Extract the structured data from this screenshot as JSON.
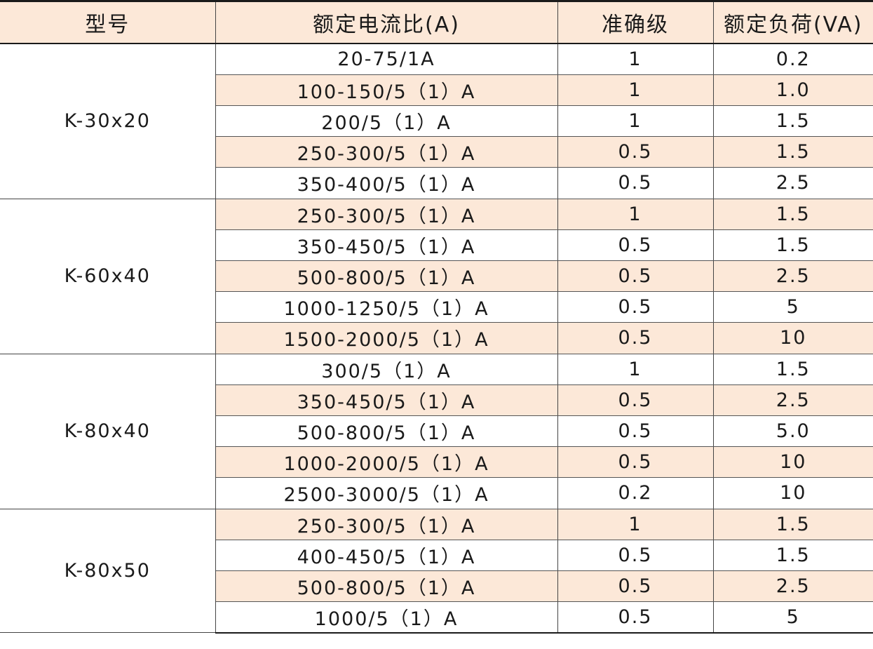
{
  "headers": [
    "型号",
    "额定电流比(A)",
    "准确级",
    "额定负荷(VA)"
  ],
  "groups": [
    {
      "model": "K-30x20",
      "rows": [
        [
          "20-75/1A",
          "1",
          "0.2"
        ],
        [
          "100-150/5（1）A",
          "1",
          "1.0"
        ],
        [
          "200/5（1）A",
          "1",
          "1.5"
        ],
        [
          "250-300/5（1）A",
          "0.5",
          "1.5"
        ],
        [
          "350-400/5（1）A",
          "0.5",
          "2.5"
        ]
      ]
    },
    {
      "model": "K-60x40",
      "rows": [
        [
          "250-300/5（1）A",
          "1",
          "1.5"
        ],
        [
          "350-450/5（1）A",
          "0.5",
          "1.5"
        ],
        [
          "500-800/5（1）A",
          "0.5",
          "2.5"
        ],
        [
          "1000-1250/5（1）A",
          "0.5",
          "5"
        ],
        [
          "1500-2000/5（1）A",
          "0.5",
          "10"
        ]
      ]
    },
    {
      "model": "K-80x40",
      "rows": [
        [
          "300/5（1）A",
          "1",
          "1.5"
        ],
        [
          "350-450/5（1）A",
          "0.5",
          "2.5"
        ],
        [
          "500-800/5（1）A",
          "0.5",
          "5.0"
        ],
        [
          "1000-2000/5（1）A",
          "0.5",
          "10"
        ],
        [
          "2500-3000/5（1）A",
          "0.2",
          "10"
        ]
      ]
    },
    {
      "model": "K-80x50",
      "rows": [
        [
          "250-300/5（1）A",
          "1",
          "1.5"
        ],
        [
          "400-450/5（1）A",
          "0.5",
          "1.5"
        ],
        [
          "500-800/5（1）A",
          "0.5",
          "2.5"
        ],
        [
          "1000/5（1）A",
          "0.5",
          "5"
        ]
      ]
    }
  ],
  "shading": [
    [
      false,
      true,
      false,
      true,
      false
    ],
    [
      true,
      false,
      true,
      false,
      true
    ],
    [
      false,
      true,
      false,
      true,
      false
    ],
    [
      true,
      false,
      true,
      false
    ]
  ],
  "colors": {
    "header_bg": "#fce8d8",
    "stripe_bg": "#fce8d8",
    "border": "#1a1a1a"
  }
}
